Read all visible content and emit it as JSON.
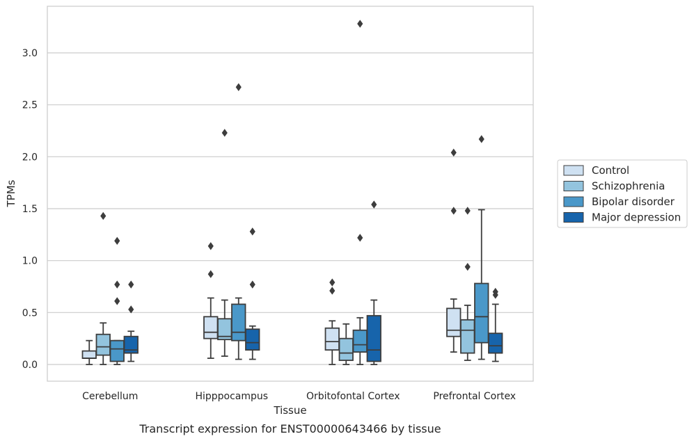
{
  "chart_data": {
    "type": "box",
    "xlabel": "Tissue",
    "ylabel": "TPMs",
    "caption": "Transcript expression for ENST00000643466 by tissue",
    "categories": [
      "Cerebellum",
      "Hipppocampus",
      "Orbitofontal Cortex",
      "Prefrontal Cortex"
    ],
    "yticks": [
      "0.0",
      "0.5",
      "1.0",
      "1.5",
      "2.0",
      "2.5",
      "3.0"
    ],
    "ylim": [
      -0.16,
      3.45
    ],
    "grid": "horizontal",
    "legend_position": "right",
    "series": [
      {
        "name": "Control",
        "color": "#cfe1f2",
        "boxes": [
          {
            "whislo": 0.0,
            "q1": 0.06,
            "med": 0.06,
            "q3": 0.13,
            "whishi": 0.23,
            "fliers": []
          },
          {
            "whislo": 0.06,
            "q1": 0.25,
            "med": 0.31,
            "q3": 0.46,
            "whishi": 0.64,
            "fliers": [
              0.87,
              1.14
            ]
          },
          {
            "whislo": 0.0,
            "q1": 0.14,
            "med": 0.22,
            "q3": 0.35,
            "whishi": 0.42,
            "fliers": [
              0.71,
              0.79
            ]
          },
          {
            "whislo": 0.12,
            "q1": 0.27,
            "med": 0.33,
            "q3": 0.54,
            "whishi": 0.63,
            "fliers": [
              1.48,
              2.04
            ]
          }
        ]
      },
      {
        "name": "Schizophrenia",
        "color": "#93c4de",
        "boxes": [
          {
            "whislo": 0.0,
            "q1": 0.09,
            "med": 0.17,
            "q3": 0.29,
            "whishi": 0.4,
            "fliers": [
              1.43
            ]
          },
          {
            "whislo": 0.08,
            "q1": 0.24,
            "med": 0.27,
            "q3": 0.44,
            "whishi": 0.62,
            "fliers": [
              2.23
            ]
          },
          {
            "whislo": 0.0,
            "q1": 0.04,
            "med": 0.11,
            "q3": 0.25,
            "whishi": 0.39,
            "fliers": []
          },
          {
            "whislo": 0.04,
            "q1": 0.11,
            "med": 0.33,
            "q3": 0.43,
            "whishi": 0.57,
            "fliers": [
              0.94,
              1.48
            ]
          }
        ]
      },
      {
        "name": "Bipolar disorder",
        "color": "#4a98c9",
        "boxes": [
          {
            "whislo": 0.0,
            "q1": 0.03,
            "med": 0.15,
            "q3": 0.23,
            "whishi": 0.23,
            "fliers": [
              0.61,
              0.77,
              1.19
            ]
          },
          {
            "whislo": 0.05,
            "q1": 0.23,
            "med": 0.31,
            "q3": 0.58,
            "whishi": 0.64,
            "fliers": [
              2.67
            ]
          },
          {
            "whislo": 0.0,
            "q1": 0.12,
            "med": 0.19,
            "q3": 0.33,
            "whishi": 0.45,
            "fliers": [
              1.22,
              3.28
            ]
          },
          {
            "whislo": 0.05,
            "q1": 0.21,
            "med": 0.46,
            "q3": 0.78,
            "whishi": 1.49,
            "fliers": [
              2.17
            ]
          }
        ]
      },
      {
        "name": "Major depression",
        "color": "#1764ab",
        "boxes": [
          {
            "whislo": 0.03,
            "q1": 0.11,
            "med": 0.14,
            "q3": 0.27,
            "whishi": 0.32,
            "fliers": [
              0.53,
              0.77
            ]
          },
          {
            "whislo": 0.05,
            "q1": 0.14,
            "med": 0.21,
            "q3": 0.34,
            "whishi": 0.37,
            "fliers": [
              0.77,
              1.28
            ]
          },
          {
            "whislo": 0.0,
            "q1": 0.03,
            "med": 0.14,
            "q3": 0.47,
            "whishi": 0.62,
            "fliers": [
              1.54
            ]
          },
          {
            "whislo": 0.03,
            "q1": 0.11,
            "med": 0.18,
            "q3": 0.3,
            "whishi": 0.58,
            "fliers": [
              0.67,
              0.7
            ]
          }
        ]
      }
    ]
  }
}
